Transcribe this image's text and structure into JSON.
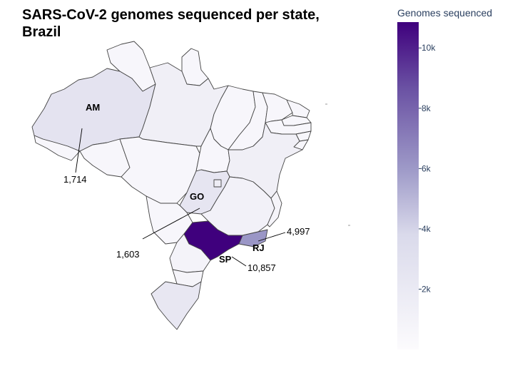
{
  "title": "SARS-CoV-2 genomes sequenced per state, Brazil",
  "colorbar": {
    "title": "Genomes sequenced",
    "min": 0,
    "max": 10857,
    "ticks": [
      "2k",
      "4k",
      "6k",
      "8k",
      "10k"
    ],
    "tick_values": [
      2000,
      4000,
      6000,
      8000,
      10000
    ],
    "color_low": "#fcfbfd",
    "color_mid": "#9e9ac8",
    "color_high": "#3f007d"
  },
  "chart_data": {
    "type": "choropleth",
    "title": "SARS-CoV-2 genomes sequenced per state, Brazil",
    "colorbar_title": "Genomes sequenced",
    "annotated_states": [
      {
        "code": "AM",
        "value": "1,714"
      },
      {
        "code": "GO",
        "value": "1,603"
      },
      {
        "code": "RJ",
        "value": "4,997"
      },
      {
        "code": "SP",
        "value": "10,857"
      }
    ]
  },
  "map": {
    "border_color": "#444444",
    "background_fill": "#f7f6fb",
    "state_fills": {
      "AM": "#e4e3f0",
      "GO": "#e6e5f1",
      "SP": "#3f007d",
      "RJ": "#9a96c6",
      "PA": "#f0eff6",
      "BA": "#f0eff6",
      "MG": "#f2f1f8",
      "RS": "#e8e7f2",
      "PR": "#f4f3f9",
      "SC": "#f5f4f9"
    }
  }
}
